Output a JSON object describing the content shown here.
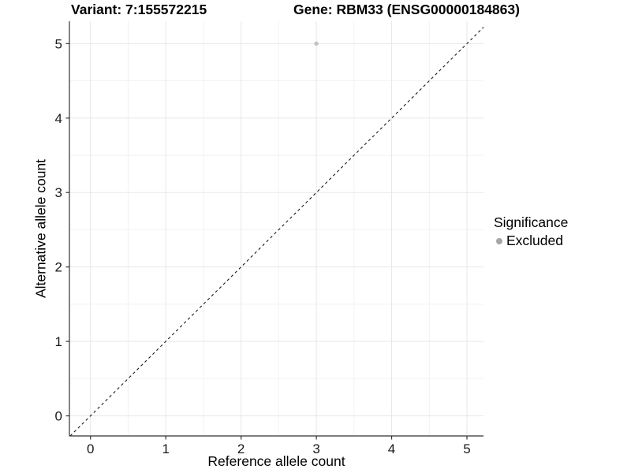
{
  "titles": {
    "left": "Variant: 7:155572215",
    "right": "Gene: RBM33 (ENSG00000184863)"
  },
  "chart_data": {
    "type": "scatter",
    "xlabel": "Reference allele count",
    "ylabel": "Alternative allele count",
    "x_ticks": [
      0,
      1,
      2,
      3,
      4,
      5
    ],
    "y_ticks": [
      0,
      1,
      2,
      3,
      4,
      5
    ],
    "xlim": [
      -0.28,
      5.22
    ],
    "ylim": [
      -0.27,
      5.3
    ],
    "grid": {
      "minor_step": 0.5,
      "major_color": "#e7e7e7",
      "minor_color": "#f2f2f2",
      "background": "#ffffff"
    },
    "points": [
      {
        "x": 3,
        "y": 5,
        "series": "Excluded",
        "color": "#c4c4c4",
        "radius": 2.8
      }
    ],
    "reference_line": {
      "kind": "identity y=x",
      "style": "dashed",
      "color": "#1a1a1a"
    },
    "axis": {
      "line_color": "#333333",
      "tick_color": "#333333",
      "tick_label_color": "#1a1a1a",
      "tick_label_size": 17
    },
    "legend": {
      "title": "Significance",
      "position": "right",
      "entries": [
        {
          "label": "Excluded",
          "color": "#a6a6a6"
        }
      ]
    }
  }
}
